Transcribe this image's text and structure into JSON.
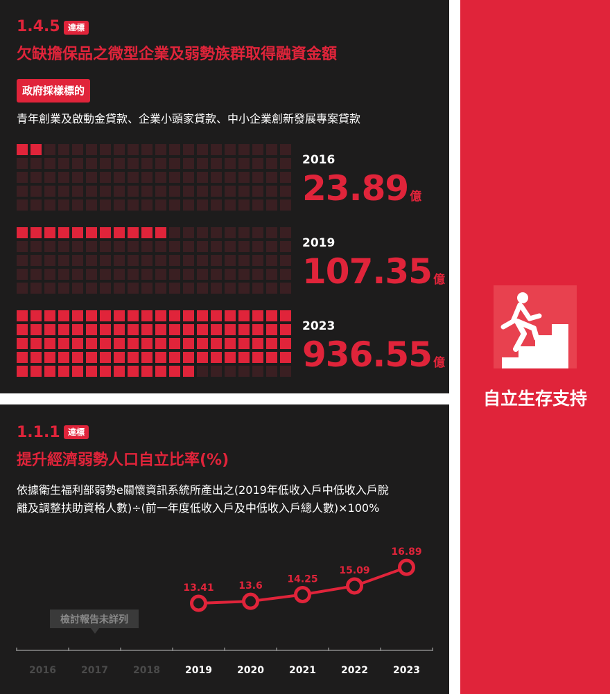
{
  "top": {
    "section_number": "1.4.5",
    "badge": "達標",
    "title": "欠缺擔保品之微型企業及弱勢族群取得融資金額",
    "tag": "政府採樣標的",
    "description": "青年創業及啟動金貸款、企業小頭家貸款、中小企業創新發展專案貸款",
    "unit": "億",
    "colors": {
      "accent": "#e0243a",
      "cell_off": "#3a1f22",
      "panel": "#1d1c1c"
    }
  },
  "sidebar": {
    "icon": "climbing-stairs-icon",
    "title": "自立生存支持"
  },
  "bottom": {
    "section_number": "1.1.1",
    "badge": "達標",
    "title": "提升經濟弱勢人口自立比率(%)",
    "description_line1": "依據衛生福利部弱勢e關懷資訊系統所產出之(2019年低收入戶中低收入戶脫",
    "description_line2": "離及調整扶助資格人數)÷(前一年度低收入戶及中低收入戶總人數)×100%"
  },
  "chart_data": [
    {
      "type": "bar",
      "categories": [
        "2016",
        "2019",
        "2023"
      ],
      "values": [
        23.89,
        107.35,
        936.55
      ],
      "unit": "億",
      "waffle_filled_cells": [
        2,
        11,
        93
      ],
      "waffle_total_cells": 100
    },
    {
      "type": "line",
      "categories": [
        "2016",
        "2017",
        "2018",
        "2019",
        "2020",
        "2021",
        "2022",
        "2023"
      ],
      "series": [
        {
          "values": [
            null,
            null,
            null,
            13.41,
            13.6,
            14.25,
            15.09,
            16.89
          ]
        }
      ],
      "value_labels": [
        "13.41",
        "13.6",
        "14.25",
        "15.09",
        "16.89"
      ],
      "annotation": "檢討報告未詳列",
      "grid": false
    }
  ]
}
